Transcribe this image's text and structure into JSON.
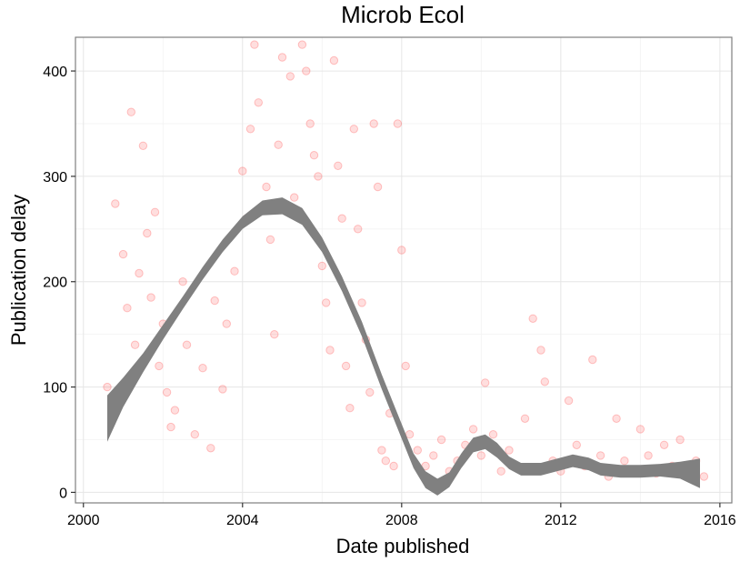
{
  "chart_data": {
    "type": "scatter",
    "title": "Microb Ecol",
    "xlabel": "Date published",
    "ylabel": "Publication delay",
    "xlim": [
      1999.8,
      2016.3
    ],
    "ylim": [
      -10,
      432
    ],
    "x_ticks": [
      {
        "value": 2000,
        "label": "2000"
      },
      {
        "value": 2004,
        "label": "2004"
      },
      {
        "value": 2008,
        "label": "2008"
      },
      {
        "value": 2012,
        "label": "2012"
      },
      {
        "value": 2016,
        "label": "2016"
      }
    ],
    "y_ticks": [
      {
        "value": 0,
        "label": "0"
      },
      {
        "value": 100,
        "label": "100"
      },
      {
        "value": 200,
        "label": "200"
      },
      {
        "value": 300,
        "label": "300"
      },
      {
        "value": 400,
        "label": "400"
      }
    ],
    "grid": true,
    "point_color": "#ff0000",
    "smooth_band_color": "#808080",
    "smooth": {
      "x": [
        2000.6,
        2001.0,
        2001.5,
        2002.0,
        2002.5,
        2003.0,
        2003.5,
        2004.0,
        2004.5,
        2005.0,
        2005.5,
        2006.0,
        2006.5,
        2007.0,
        2007.5,
        2008.0,
        2008.3,
        2008.6,
        2008.9,
        2009.2,
        2009.5,
        2009.8,
        2010.1,
        2010.4,
        2010.7,
        2011.0,
        2011.5,
        2012.0,
        2012.3,
        2012.7,
        2013.0,
        2013.5,
        2014.0,
        2014.5,
        2015.0,
        2015.5
      ],
      "fit": [
        70,
        95,
        123,
        152,
        180,
        208,
        234,
        256,
        270,
        272,
        262,
        235,
        198,
        155,
        105,
        58,
        30,
        12,
        5,
        12,
        30,
        45,
        48,
        40,
        28,
        22,
        22,
        27,
        30,
        27,
        22,
        20,
        20,
        21,
        21,
        18
      ],
      "se": [
        22,
        14,
        9,
        7,
        6,
        6,
        6,
        6,
        7,
        8,
        8,
        7,
        7,
        7,
        7,
        7,
        7,
        8,
        8,
        7,
        7,
        7,
        7,
        7,
        6,
        6,
        6,
        6,
        6,
        6,
        6,
        6,
        6,
        6,
        8,
        14
      ]
    },
    "points": [
      {
        "x": 2000.6,
        "y": 100
      },
      {
        "x": 2000.8,
        "y": 274
      },
      {
        "x": 2000.9,
        "y": 88
      },
      {
        "x": 2001.0,
        "y": 226
      },
      {
        "x": 2001.1,
        "y": 175
      },
      {
        "x": 2001.2,
        "y": 361
      },
      {
        "x": 2001.3,
        "y": 140
      },
      {
        "x": 2001.4,
        "y": 208
      },
      {
        "x": 2001.5,
        "y": 329
      },
      {
        "x": 2001.6,
        "y": 246
      },
      {
        "x": 2001.7,
        "y": 185
      },
      {
        "x": 2001.8,
        "y": 266
      },
      {
        "x": 2001.9,
        "y": 120
      },
      {
        "x": 2002.0,
        "y": 160
      },
      {
        "x": 2002.1,
        "y": 95
      },
      {
        "x": 2002.2,
        "y": 62
      },
      {
        "x": 2002.3,
        "y": 78
      },
      {
        "x": 2002.5,
        "y": 200
      },
      {
        "x": 2002.6,
        "y": 140
      },
      {
        "x": 2002.8,
        "y": 55
      },
      {
        "x": 2003.0,
        "y": 118
      },
      {
        "x": 2003.2,
        "y": 42
      },
      {
        "x": 2003.3,
        "y": 182
      },
      {
        "x": 2003.5,
        "y": 98
      },
      {
        "x": 2003.6,
        "y": 160
      },
      {
        "x": 2003.8,
        "y": 210
      },
      {
        "x": 2004.0,
        "y": 305
      },
      {
        "x": 2004.1,
        "y": 260
      },
      {
        "x": 2004.2,
        "y": 345
      },
      {
        "x": 2004.3,
        "y": 425
      },
      {
        "x": 2004.4,
        "y": 370
      },
      {
        "x": 2004.6,
        "y": 290
      },
      {
        "x": 2004.7,
        "y": 240
      },
      {
        "x": 2004.8,
        "y": 150
      },
      {
        "x": 2004.9,
        "y": 330
      },
      {
        "x": 2005.0,
        "y": 413
      },
      {
        "x": 2005.2,
        "y": 395
      },
      {
        "x": 2005.3,
        "y": 280
      },
      {
        "x": 2005.5,
        "y": 425
      },
      {
        "x": 2005.6,
        "y": 400
      },
      {
        "x": 2005.7,
        "y": 350
      },
      {
        "x": 2005.8,
        "y": 320
      },
      {
        "x": 2005.9,
        "y": 300
      },
      {
        "x": 2006.0,
        "y": 215
      },
      {
        "x": 2006.1,
        "y": 180
      },
      {
        "x": 2006.2,
        "y": 135
      },
      {
        "x": 2006.3,
        "y": 410
      },
      {
        "x": 2006.4,
        "y": 310
      },
      {
        "x": 2006.5,
        "y": 260
      },
      {
        "x": 2006.6,
        "y": 120
      },
      {
        "x": 2006.7,
        "y": 80
      },
      {
        "x": 2006.8,
        "y": 345
      },
      {
        "x": 2006.9,
        "y": 250
      },
      {
        "x": 2007.0,
        "y": 180
      },
      {
        "x": 2007.1,
        "y": 145
      },
      {
        "x": 2007.2,
        "y": 95
      },
      {
        "x": 2007.3,
        "y": 350
      },
      {
        "x": 2007.4,
        "y": 290
      },
      {
        "x": 2007.5,
        "y": 40
      },
      {
        "x": 2007.6,
        "y": 30
      },
      {
        "x": 2007.7,
        "y": 75
      },
      {
        "x": 2007.8,
        "y": 25
      },
      {
        "x": 2007.9,
        "y": 350
      },
      {
        "x": 2008.0,
        "y": 230
      },
      {
        "x": 2008.1,
        "y": 120
      },
      {
        "x": 2008.2,
        "y": 55
      },
      {
        "x": 2008.4,
        "y": 40
      },
      {
        "x": 2008.6,
        "y": 25
      },
      {
        "x": 2008.8,
        "y": 35
      },
      {
        "x": 2009.0,
        "y": 50
      },
      {
        "x": 2009.2,
        "y": 20
      },
      {
        "x": 2009.4,
        "y": 30
      },
      {
        "x": 2009.6,
        "y": 45
      },
      {
        "x": 2009.8,
        "y": 60
      },
      {
        "x": 2010.0,
        "y": 35
      },
      {
        "x": 2010.1,
        "y": 104
      },
      {
        "x": 2010.3,
        "y": 55
      },
      {
        "x": 2010.5,
        "y": 20
      },
      {
        "x": 2010.7,
        "y": 40
      },
      {
        "x": 2010.9,
        "y": 25
      },
      {
        "x": 2011.1,
        "y": 70
      },
      {
        "x": 2011.3,
        "y": 165
      },
      {
        "x": 2011.5,
        "y": 135
      },
      {
        "x": 2011.6,
        "y": 105
      },
      {
        "x": 2011.8,
        "y": 30
      },
      {
        "x": 2012.0,
        "y": 20
      },
      {
        "x": 2012.2,
        "y": 87
      },
      {
        "x": 2012.4,
        "y": 45
      },
      {
        "x": 2012.6,
        "y": 25
      },
      {
        "x": 2012.8,
        "y": 126
      },
      {
        "x": 2013.0,
        "y": 35
      },
      {
        "x": 2013.2,
        "y": 15
      },
      {
        "x": 2013.4,
        "y": 70
      },
      {
        "x": 2013.6,
        "y": 30
      },
      {
        "x": 2013.8,
        "y": 20
      },
      {
        "x": 2014.0,
        "y": 60
      },
      {
        "x": 2014.2,
        "y": 35
      },
      {
        "x": 2014.4,
        "y": 18
      },
      {
        "x": 2014.6,
        "y": 45
      },
      {
        "x": 2014.8,
        "y": 25
      },
      {
        "x": 2015.0,
        "y": 50
      },
      {
        "x": 2015.2,
        "y": 20
      },
      {
        "x": 2015.4,
        "y": 30
      },
      {
        "x": 2015.6,
        "y": 15
      }
    ]
  }
}
